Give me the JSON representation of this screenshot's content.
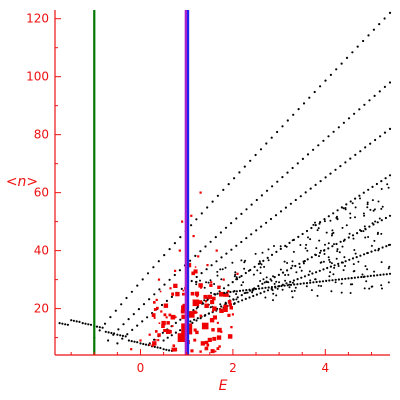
{
  "chart_data": {
    "type": "scatter",
    "xlabel": "E",
    "ylabel": "<n>",
    "xlim": [
      -1.85,
      5.4
    ],
    "ylim": [
      4,
      123
    ],
    "xticks": [
      0,
      2,
      4
    ],
    "yticks": [
      20,
      40,
      60,
      80,
      100,
      120
    ],
    "grid": false,
    "colors": {
      "axis": "#ee1111",
      "points": "#000000",
      "red_points": "#ee0000",
      "green_line": "#007700",
      "blue_line": "#2222ee",
      "purple_line": "#aa22cc"
    },
    "vlines": [
      {
        "x": -1.0,
        "color": "#007700"
      },
      {
        "x": 1.0,
        "color": "#aa22cc"
      },
      {
        "x": 1.03,
        "color": "#2222ee"
      }
    ],
    "black_bands": [
      {
        "x0": -1.0,
        "y0": 10,
        "x1": 5.4,
        "y1": 122
      },
      {
        "x0": -0.7,
        "y0": 9,
        "x1": 5.4,
        "y1": 98
      },
      {
        "x0": -0.5,
        "y0": 8,
        "x1": 5.4,
        "y1": 82
      },
      {
        "x0": 0.2,
        "y0": 8,
        "x1": 5.4,
        "y1": 66
      },
      {
        "x0": 0.5,
        "y0": 9,
        "x1": 5.4,
        "y1": 52
      },
      {
        "x0": 1.0,
        "y0": 15,
        "x1": 5.4,
        "y1": 42
      },
      {
        "x0": 1.6,
        "y0": 25,
        "x1": 5.4,
        "y1": 32
      }
    ],
    "red_points": [
      [
        0.95,
        20,
        3
      ],
      [
        1.0,
        13,
        5
      ],
      [
        0.9,
        10,
        4
      ],
      [
        1.1,
        18,
        3
      ],
      [
        0.8,
        25,
        2
      ],
      [
        0.7,
        17,
        2
      ],
      [
        1.2,
        22,
        3
      ],
      [
        1.3,
        28,
        2
      ],
      [
        0.6,
        12,
        2
      ],
      [
        0.5,
        15,
        2
      ],
      [
        1.4,
        14,
        3
      ],
      [
        1.5,
        24,
        2
      ],
      [
        0.4,
        30,
        1
      ],
      [
        0.3,
        8,
        2
      ],
      [
        0.2,
        11,
        1
      ],
      [
        1.6,
        20,
        2
      ],
      [
        1.7,
        10,
        2
      ],
      [
        1.8,
        30,
        1
      ],
      [
        0.0,
        9,
        1
      ],
      [
        -0.2,
        6,
        1
      ],
      [
        1.05,
        35,
        2
      ],
      [
        0.85,
        40,
        1
      ],
      [
        1.15,
        45,
        1
      ],
      [
        0.75,
        33,
        1
      ],
      [
        1.25,
        38,
        1
      ],
      [
        1.9,
        26,
        1
      ],
      [
        2.1,
        32,
        1
      ],
      [
        0.55,
        21,
        2
      ],
      [
        1.35,
        8,
        2
      ],
      [
        0.65,
        27,
        1
      ],
      [
        1.45,
        35,
        1
      ],
      [
        1.55,
        16,
        2
      ],
      [
        0.45,
        19,
        1
      ],
      [
        1.65,
        40,
        1
      ],
      [
        0.35,
        23,
        1
      ],
      [
        1.75,
        12,
        1
      ],
      [
        1.1,
        52,
        1
      ],
      [
        0.9,
        50,
        1
      ],
      [
        1.3,
        60,
        1
      ],
      [
        2.0,
        18,
        1
      ]
    ],
    "bottom_curve": [
      [
        -1.75,
        15
      ],
      [
        -1.5,
        16
      ],
      [
        -1.25,
        15
      ],
      [
        -1.0,
        14
      ],
      [
        -0.75,
        12
      ],
      [
        -0.5,
        11
      ],
      [
        -0.25,
        9
      ],
      [
        0.0,
        8
      ],
      [
        0.25,
        7
      ],
      [
        0.5,
        6
      ]
    ]
  }
}
